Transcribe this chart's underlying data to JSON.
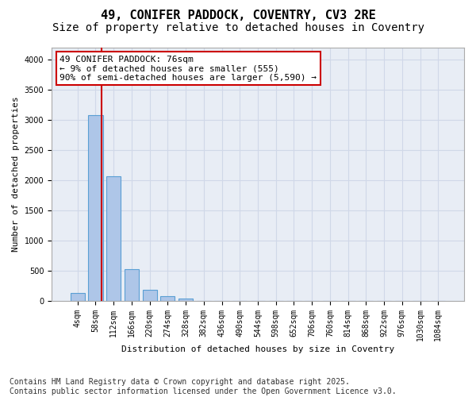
{
  "title": "49, CONIFER PADDOCK, COVENTRY, CV3 2RE",
  "subtitle": "Size of property relative to detached houses in Coventry",
  "xlabel": "Distribution of detached houses by size in Coventry",
  "ylabel": "Number of detached properties",
  "bar_labels": [
    "4sqm",
    "58sqm",
    "112sqm",
    "166sqm",
    "220sqm",
    "274sqm",
    "328sqm",
    "382sqm",
    "436sqm",
    "490sqm",
    "544sqm",
    "598sqm",
    "652sqm",
    "706sqm",
    "760sqm",
    "814sqm",
    "868sqm",
    "922sqm",
    "976sqm",
    "1030sqm",
    "1084sqm"
  ],
  "bar_values": [
    130,
    3080,
    2060,
    520,
    185,
    70,
    30,
    0,
    0,
    0,
    0,
    0,
    0,
    0,
    0,
    0,
    0,
    0,
    0,
    0,
    0
  ],
  "bar_color": "#aec6e8",
  "bar_edge_color": "#5a9fd4",
  "annotation_text": "49 CONIFER PADDOCK: 76sqm\n← 9% of detached houses are smaller (555)\n90% of semi-detached houses are larger (5,590) →",
  "annotation_box_color": "#ffffff",
  "annotation_box_edge_color": "#cc0000",
  "vline_color": "#cc0000",
  "vline_x": 1.35,
  "ylim": [
    0,
    4200
  ],
  "yticks": [
    0,
    500,
    1000,
    1500,
    2000,
    2500,
    3000,
    3500,
    4000
  ],
  "grid_color": "#d0d8e8",
  "background_color": "#e8edf5",
  "footer_text": "Contains HM Land Registry data © Crown copyright and database right 2025.\nContains public sector information licensed under the Open Government Licence v3.0.",
  "title_fontsize": 11,
  "subtitle_fontsize": 10,
  "label_fontsize": 8,
  "tick_fontsize": 7,
  "annotation_fontsize": 8,
  "footer_fontsize": 7
}
